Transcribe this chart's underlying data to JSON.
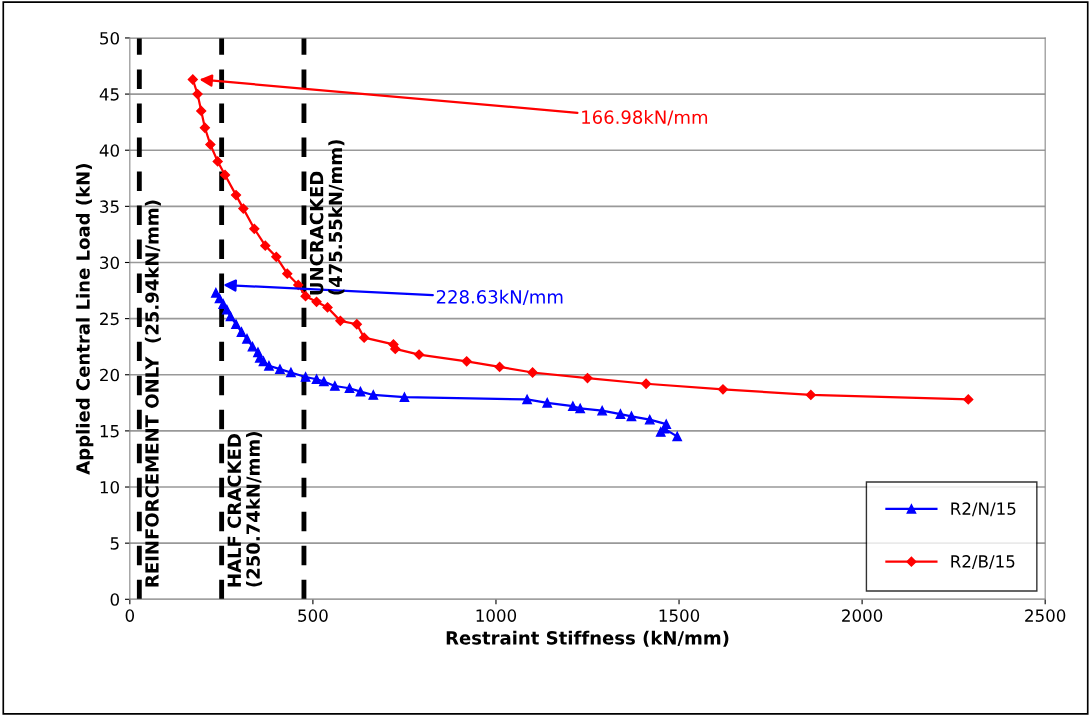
{
  "chart_data": {
    "type": "line",
    "xlabel": "Restraint Stiffness (kN/mm)",
    "ylabel": "Applied Central Line Load (kN)",
    "xlim": [
      0,
      2500
    ],
    "xticks": [
      0,
      500,
      1000,
      1500,
      2000,
      2500
    ],
    "ylim": [
      0,
      50
    ],
    "yticks": [
      0,
      5,
      10,
      15,
      20,
      25,
      30,
      35,
      40,
      45,
      50
    ],
    "grid": "y",
    "legend": "bottom right",
    "line_style": "solid",
    "series": [
      {
        "name": "R2/N/15",
        "color": "#0000ff",
        "marker": "triangle",
        "x": [
          235,
          245,
          255,
          265,
          275,
          290,
          305,
          320,
          335,
          350,
          355,
          365,
          380,
          410,
          440,
          480,
          510,
          530,
          560,
          600,
          630,
          665,
          750,
          1085,
          1140,
          1210,
          1230,
          1290,
          1340,
          1370,
          1420,
          1465,
          1450,
          1460,
          1495
        ],
        "values": [
          27.3,
          26.8,
          26.3,
          25.8,
          25.2,
          24.5,
          23.8,
          23.2,
          22.5,
          22.0,
          21.5,
          21.2,
          20.8,
          20.5,
          20.2,
          19.8,
          19.6,
          19.4,
          19.0,
          18.8,
          18.5,
          18.2,
          18.0,
          17.8,
          17.5,
          17.2,
          17.0,
          16.8,
          16.5,
          16.3,
          16.0,
          15.6,
          14.9,
          15.2,
          14.5
        ]
      },
      {
        "name": "R2/B/15",
        "color": "#ff0000",
        "marker": "diamond",
        "x": [
          172,
          185,
          195,
          205,
          220,
          240,
          260,
          290,
          310,
          340,
          370,
          400,
          430,
          460,
          480,
          510,
          540,
          575,
          620,
          640,
          720,
          725,
          790,
          920,
          1010,
          1100,
          1250,
          1410,
          1620,
          1860,
          2290
        ],
        "values": [
          46.3,
          45,
          43.5,
          42,
          40.5,
          39,
          37.8,
          36,
          34.8,
          33,
          31.5,
          30.5,
          29,
          28,
          27,
          26.5,
          26,
          24.8,
          24.5,
          23.3,
          22.7,
          22.3,
          21.8,
          21.2,
          20.7,
          20.2,
          19.7,
          19.2,
          18.7,
          18.2,
          17.8
        ]
      }
    ],
    "ref_lines": [
      {
        "axis": "x",
        "value": 25.94,
        "label": "REINFORCEMENT ONLY  (25.94kN/mm)",
        "color": "#000000",
        "line_style": "dashed"
      },
      {
        "axis": "x",
        "value": 250.74,
        "label": "HALF CRACKED\n(250.74kN/mm)",
        "color": "#000000",
        "line_style": "dashed"
      },
      {
        "axis": "x",
        "value": 475.55,
        "label": "UNCRACKED\n(475.55kN/mm)",
        "color": "#000000",
        "line_style": "dashed"
      }
    ],
    "annotations": [
      {
        "text": "166.98kN/mm",
        "x": 190,
        "y": 46.3
      },
      {
        "text": "228.63kN/mm",
        "x": 255,
        "y": 28
      }
    ]
  }
}
